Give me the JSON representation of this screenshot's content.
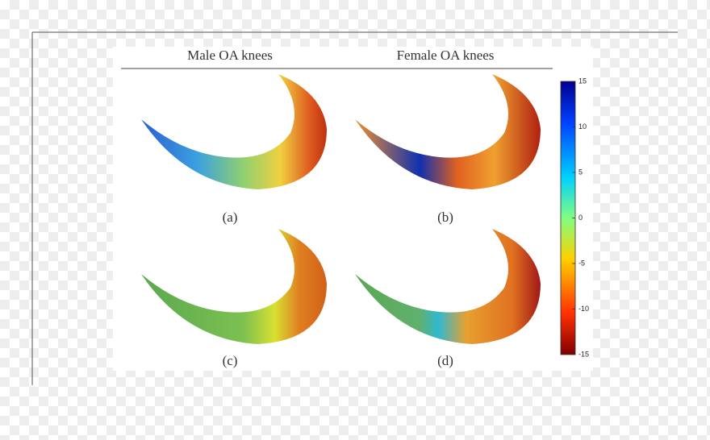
{
  "columns": [
    "Male OA knees",
    "Female OA knees"
  ],
  "panels": [
    "(a)",
    "(b)",
    "(c)",
    "(d)"
  ],
  "colorbar": {
    "lim": [
      -15,
      15
    ],
    "ticks": [
      15,
      10,
      5,
      0,
      -5,
      -10,
      -15
    ]
  }
}
